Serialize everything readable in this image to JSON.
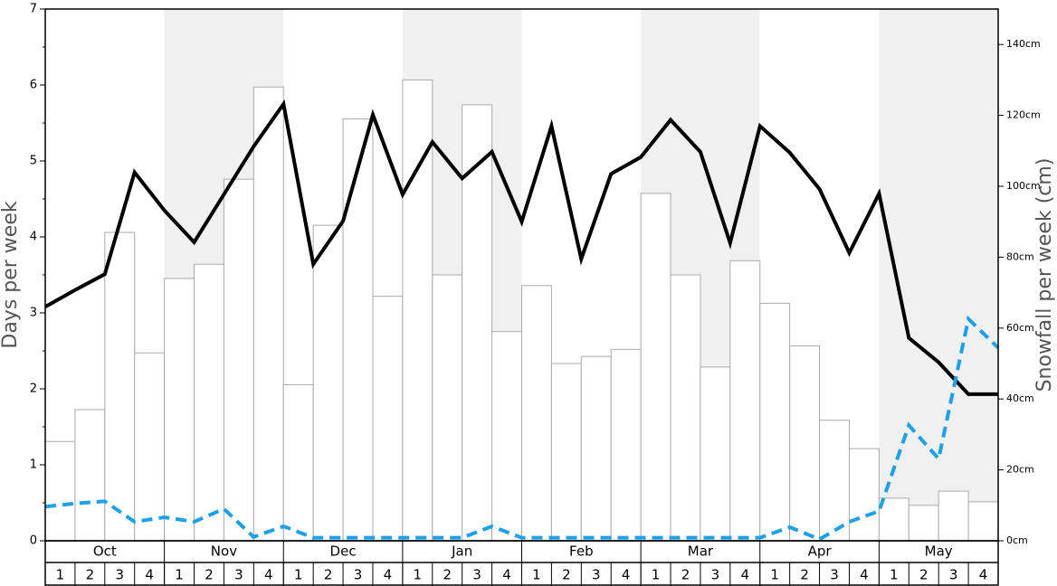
{
  "chart_data": {
    "type": "bar-line",
    "ylabel": "Days per week",
    "y2label": "Snowfall per week (cm)",
    "months": [
      "Oct",
      "Nov",
      "Dec",
      "Jan",
      "Feb",
      "Mar",
      "Apr",
      "May"
    ],
    "weeks": [
      1,
      2,
      3,
      4
    ],
    "ylim": [
      0,
      7
    ],
    "yticks": [
      0,
      1,
      2,
      3,
      4,
      5,
      6,
      7
    ],
    "yminorticks": [
      0.5,
      1.5,
      2.5,
      3.5,
      4.5,
      5.5,
      6.5
    ],
    "y2lim": [
      0,
      150
    ],
    "y2ticks": [
      {
        "value": 0,
        "label": "0cm"
      },
      {
        "value": 20,
        "label": "20cm"
      },
      {
        "value": 40,
        "label": "40cm"
      },
      {
        "value": 60,
        "label": "60cm"
      },
      {
        "value": 80,
        "label": "80cm"
      },
      {
        "value": 100,
        "label": "100cm"
      },
      {
        "value": 120,
        "label": "120cm"
      },
      {
        "value": 140,
        "label": "140cm"
      }
    ],
    "bars": {
      "axis": "y2",
      "color": "#ffffff",
      "values": [
        28,
        37,
        87,
        53,
        74,
        78,
        102,
        128,
        44,
        89,
        119,
        69,
        130,
        75,
        123,
        59,
        72,
        50,
        52,
        54,
        98,
        75,
        49,
        79,
        67,
        55,
        34,
        26,
        12,
        10,
        14,
        11
      ]
    },
    "series": [
      {
        "color": "#000000",
        "style": "solid",
        "values": [
          3.08,
          3.3,
          3.51,
          4.85,
          4.35,
          3.93,
          4.56,
          5.19,
          5.75,
          3.64,
          4.21,
          5.61,
          4.56,
          5.25,
          4.77,
          5.12,
          4.2,
          5.46,
          3.71,
          4.83,
          5.05,
          5.54,
          5.12,
          3.92,
          5.46,
          5.11,
          4.63,
          3.79,
          4.57,
          2.67,
          2.35,
          1.93,
          1.93
        ]
      },
      {
        "color": "#1ea0e6",
        "style": "dashed",
        "values": [
          0.45,
          0.49,
          0.52,
          0.25,
          0.31,
          0.25,
          0.42,
          0.05,
          0.19,
          0.04,
          0.04,
          0.04,
          0.04,
          0.04,
          0.04,
          0.19,
          0.04,
          0.04,
          0.04,
          0.04,
          0.04,
          0.04,
          0.04,
          0.04,
          0.04,
          0.18,
          0.02,
          0.25,
          0.39,
          1.52,
          1.08,
          2.92,
          2.54
        ]
      }
    ]
  }
}
